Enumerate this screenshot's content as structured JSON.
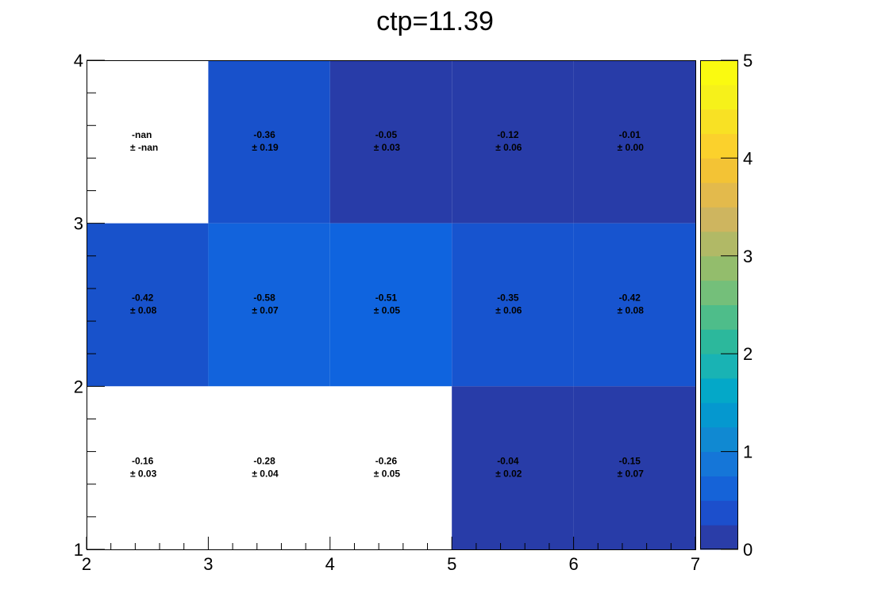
{
  "chart_data": {
    "type": "heatmap",
    "title": "ctp=11.39",
    "xlabel": "",
    "ylabel": "",
    "xlim": [
      2,
      7
    ],
    "ylim": [
      1,
      4
    ],
    "x_edges": [
      2,
      3,
      4,
      5,
      6,
      7
    ],
    "y_edges": [
      1,
      2,
      3,
      4
    ],
    "x_tick_labels": [
      "2",
      "3",
      "4",
      "5",
      "6",
      "7"
    ],
    "y_tick_labels": [
      "1",
      "2",
      "3",
      "4"
    ],
    "colorbar": {
      "range": [
        0,
        5
      ],
      "tick_labels": [
        "0",
        "1",
        "2",
        "3",
        "4",
        "5"
      ],
      "colors": [
        "#2a3da8",
        "#1c4fcc",
        "#1563d8",
        "#1576d8",
        "#1089d2",
        "#0598cf",
        "#04a8c8",
        "#19b3b4",
        "#2cb89c",
        "#4ebd8a",
        "#74bf7a",
        "#93bd6c",
        "#b1b966",
        "#ceb55f",
        "#e3ba4c",
        "#f3c335",
        "#fbd12c",
        "#f8e124",
        "#f6f11a",
        "#fafa10"
      ]
    },
    "cells": [
      {
        "x": 2.5,
        "y": 3.5,
        "value": "-nan",
        "error": "-nan",
        "fill": "#ffffff",
        "label_value": "-nan",
        "label_error": "± -nan"
      },
      {
        "x": 3.5,
        "y": 3.5,
        "value": -0.36,
        "error": 0.19,
        "fill": "#1851cb",
        "label_value": "-0.36",
        "label_error": "± 0.19"
      },
      {
        "x": 4.5,
        "y": 3.5,
        "value": -0.05,
        "error": 0.03,
        "fill": "#283ca8",
        "label_value": "-0.05",
        "label_error": "± 0.03"
      },
      {
        "x": 5.5,
        "y": 3.5,
        "value": -0.12,
        "error": 0.06,
        "fill": "#283ca8",
        "label_value": "-0.12",
        "label_error": "± 0.06"
      },
      {
        "x": 6.5,
        "y": 3.5,
        "value": -0.01,
        "error": 0.0,
        "fill": "#283ca8",
        "label_value": "-0.01",
        "label_error": "± 0.00"
      },
      {
        "x": 2.5,
        "y": 2.5,
        "value": -0.42,
        "error": 0.08,
        "fill": "#1852cb",
        "label_value": "-0.42",
        "label_error": "± 0.08"
      },
      {
        "x": 3.5,
        "y": 2.5,
        "value": -0.58,
        "error": 0.07,
        "fill": "#1263dc",
        "label_value": "-0.58",
        "label_error": "± 0.07"
      },
      {
        "x": 4.5,
        "y": 2.5,
        "value": -0.51,
        "error": 0.05,
        "fill": "#0f64df",
        "label_value": "-0.51",
        "label_error": "± 0.05"
      },
      {
        "x": 5.5,
        "y": 2.5,
        "value": -0.35,
        "error": 0.06,
        "fill": "#1754cf",
        "label_value": "-0.35",
        "label_error": "± 0.06"
      },
      {
        "x": 6.5,
        "y": 2.5,
        "value": -0.42,
        "error": 0.08,
        "fill": "#1754cf",
        "label_value": "-0.42",
        "label_error": "± 0.08"
      },
      {
        "x": 2.5,
        "y": 1.5,
        "value": -0.16,
        "error": 0.03,
        "fill": "#ffffff",
        "label_value": "-0.16",
        "label_error": "± 0.03"
      },
      {
        "x": 3.5,
        "y": 1.5,
        "value": -0.28,
        "error": 0.04,
        "fill": "#ffffff",
        "label_value": "-0.28",
        "label_error": "± 0.04"
      },
      {
        "x": 4.5,
        "y": 1.5,
        "value": -0.26,
        "error": 0.05,
        "fill": "#ffffff",
        "label_value": "-0.26",
        "label_error": "± 0.05"
      },
      {
        "x": 5.5,
        "y": 1.5,
        "value": -0.04,
        "error": 0.02,
        "fill": "#283ca8",
        "label_value": "-0.04",
        "label_error": "± 0.02"
      },
      {
        "x": 6.5,
        "y": 1.5,
        "value": -0.15,
        "error": 0.07,
        "fill": "#283ca8",
        "label_value": "-0.15",
        "label_error": "± 0.07"
      }
    ]
  }
}
